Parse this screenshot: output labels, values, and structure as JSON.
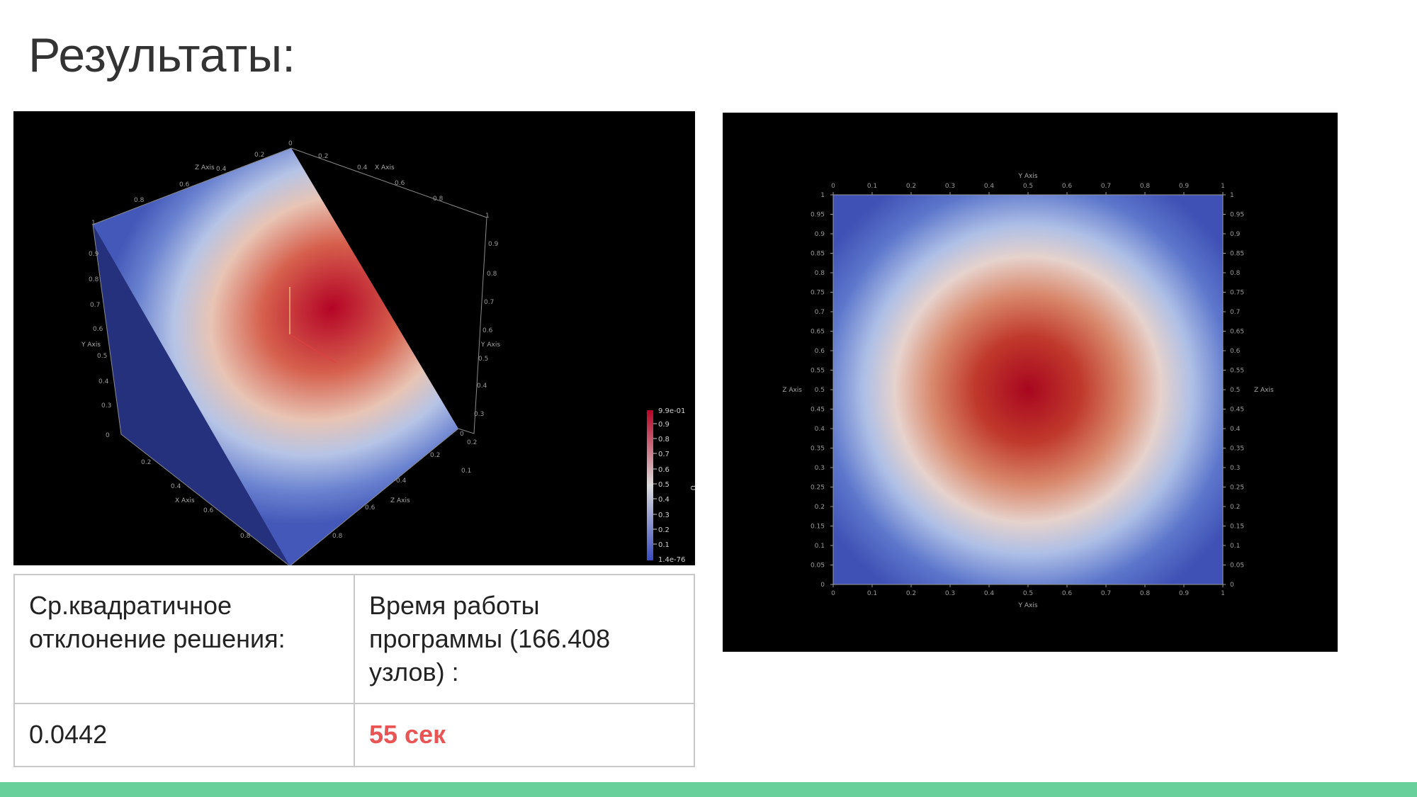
{
  "slide": {
    "title": "Результаты:"
  },
  "view3d": {
    "x_axis_label": "X Axis",
    "y_axis_label": "Y Axis",
    "z_axis_label": "Z Axis",
    "colorbar": {
      "title": "U",
      "max_label": "9.9e-01",
      "min_label": "1.4e-76",
      "ticks": [
        "0.9",
        "0.8",
        "0.7",
        "0.6",
        "0.5",
        "0.4",
        "0.3",
        "0.2",
        "0.1"
      ],
      "colors": [
        "#3b4cc0",
        "#dddddd",
        "#b40426"
      ]
    }
  },
  "view2d": {
    "x_axis_label": "Y Axis",
    "y_axis_label": "Z Axis",
    "x_ticks": [
      "0",
      "0.1",
      "0.2",
      "0.3",
      "0.4",
      "0.5",
      "0.6",
      "0.7",
      "0.8",
      "0.9",
      "1"
    ],
    "y_ticks": [
      "0",
      "0.05",
      "0.1",
      "0.15",
      "0.2",
      "0.25",
      "0.3",
      "0.35",
      "0.4",
      "0.45",
      "0.5",
      "0.55",
      "0.6",
      "0.65",
      "0.7",
      "0.75",
      "0.8",
      "0.85",
      "0.9",
      "0.95",
      "1"
    ]
  },
  "table": {
    "headers": [
      "Ср.квадратичное отклонение решения:",
      "Время работы программы (166.408 узлов) :"
    ],
    "values": [
      "0.0442",
      "55 сек"
    ]
  },
  "colors": {
    "accent_bar": "#67d09b",
    "highlight_text": "#e95555"
  }
}
